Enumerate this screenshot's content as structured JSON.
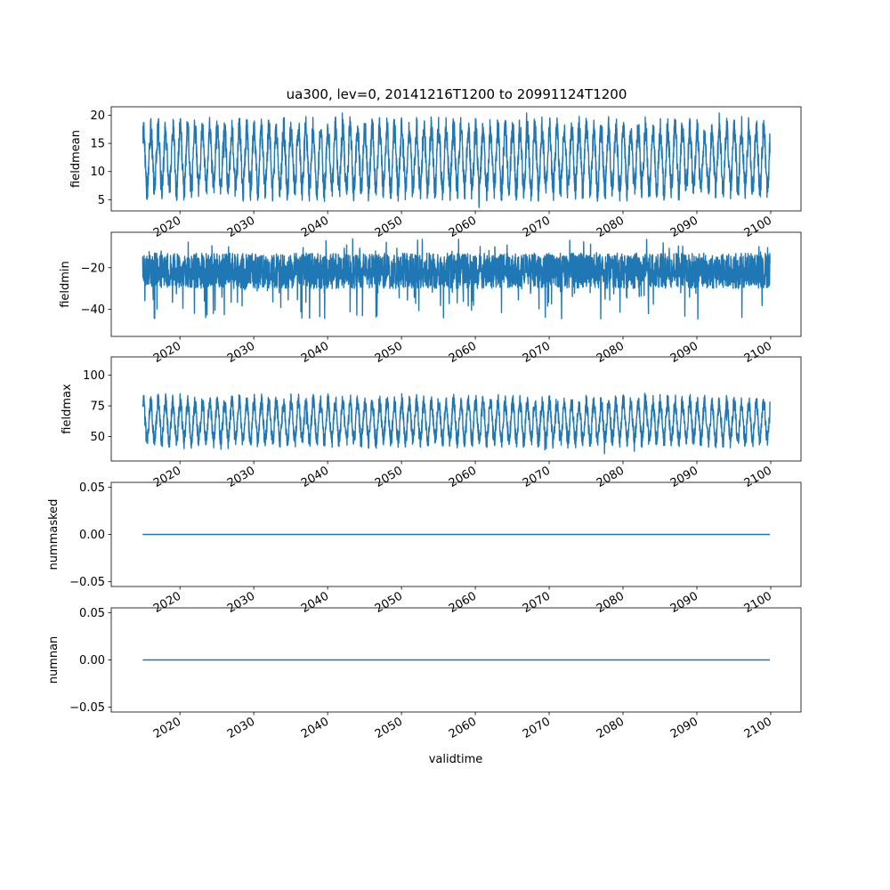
{
  "figure": {
    "title": "ua300, lev=0, 20141216T1200 to 20991124T1200",
    "xlabel": "validtime"
  },
  "colors": {
    "series": "#1f77b4",
    "axes": "#000000",
    "background": "#ffffff"
  },
  "chart_data": [
    {
      "type": "line",
      "ylabel": "fieldmean",
      "x_range": [
        2014.96,
        2099.9
      ],
      "xlim": [
        2010.7,
        2104.1
      ],
      "ylim": [
        3.0,
        21.5
      ],
      "yticks": [
        5,
        10,
        15,
        20
      ],
      "ytick_labels": [
        "5",
        "10",
        "15",
        "20"
      ],
      "xticks": [
        2020,
        2030,
        2040,
        2050,
        2060,
        2070,
        2080,
        2090,
        2100
      ],
      "xtick_labels": [
        "2020",
        "2030",
        "2040",
        "2050",
        "2060",
        "2070",
        "2080",
        "2090",
        "2100"
      ],
      "seasonal_cycle": {
        "annual_low": 7.0,
        "annual_high": 17.5
      },
      "observed_range": [
        3.6,
        20.4
      ],
      "grid": false
    },
    {
      "type": "line",
      "ylabel": "fieldmin",
      "x_range": [
        2014.96,
        2099.9
      ],
      "xlim": [
        2010.7,
        2104.1
      ],
      "ylim": [
        -53,
        -3
      ],
      "yticks": [
        -40,
        -20
      ],
      "ytick_labels": [
        "−40",
        "−20"
      ],
      "xticks": [
        2020,
        2030,
        2040,
        2050,
        2060,
        2070,
        2080,
        2090,
        2100
      ],
      "xtick_labels": [
        "2020",
        "2030",
        "2040",
        "2050",
        "2060",
        "2070",
        "2080",
        "2090",
        "2100"
      ],
      "typical_band": [
        -30,
        -13
      ],
      "observed_range": [
        -51,
        -4
      ],
      "grid": false
    },
    {
      "type": "line",
      "ylabel": "fieldmax",
      "x_range": [
        2014.96,
        2099.9
      ],
      "xlim": [
        2010.7,
        2104.1
      ],
      "ylim": [
        30,
        115
      ],
      "yticks": [
        50,
        75,
        100
      ],
      "ytick_labels": [
        "50",
        "75",
        "100"
      ],
      "xticks": [
        2020,
        2030,
        2040,
        2050,
        2060,
        2070,
        2080,
        2090,
        2100
      ],
      "xtick_labels": [
        "2020",
        "2030",
        "2040",
        "2050",
        "2060",
        "2070",
        "2080",
        "2090",
        "2100"
      ],
      "seasonal_cycle": {
        "annual_low": 47,
        "annual_high": 78
      },
      "observed_range": [
        33,
        110
      ],
      "grid": false
    },
    {
      "type": "line",
      "ylabel": "nummasked",
      "x_range": [
        2014.96,
        2099.9
      ],
      "xlim": [
        2010.7,
        2104.1
      ],
      "ylim": [
        -0.055,
        0.055
      ],
      "yticks": [
        -0.05,
        0.0,
        0.05
      ],
      "ytick_labels": [
        "−0.05",
        "0.00",
        "0.05"
      ],
      "xticks": [
        2020,
        2030,
        2040,
        2050,
        2060,
        2070,
        2080,
        2090,
        2100
      ],
      "xtick_labels": [
        "2020",
        "2030",
        "2040",
        "2050",
        "2060",
        "2070",
        "2080",
        "2090",
        "2100"
      ],
      "constant_value": 0.0,
      "grid": false
    },
    {
      "type": "line",
      "ylabel": "numnan",
      "x_range": [
        2014.96,
        2099.9
      ],
      "xlim": [
        2010.7,
        2104.1
      ],
      "ylim": [
        -0.055,
        0.055
      ],
      "yticks": [
        -0.05,
        0.0,
        0.05
      ],
      "ytick_labels": [
        "−0.05",
        "0.00",
        "0.05"
      ],
      "xticks": [
        2020,
        2030,
        2040,
        2050,
        2060,
        2070,
        2080,
        2090,
        2100
      ],
      "xtick_labels": [
        "2020",
        "2030",
        "2040",
        "2050",
        "2060",
        "2070",
        "2080",
        "2090",
        "2100"
      ],
      "constant_value": 0.0,
      "grid": false
    }
  ]
}
